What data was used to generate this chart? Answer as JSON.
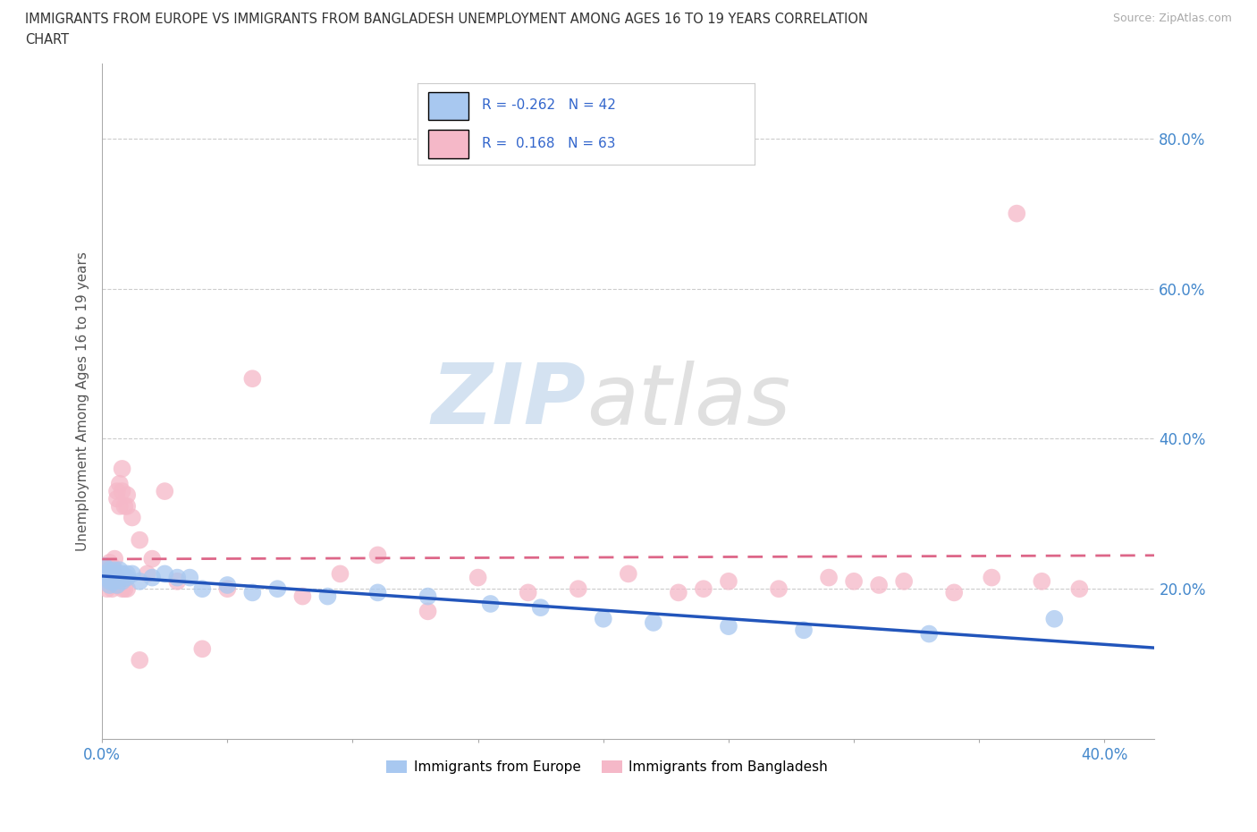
{
  "title_line1": "IMMIGRANTS FROM EUROPE VS IMMIGRANTS FROM BANGLADESH UNEMPLOYMENT AMONG AGES 16 TO 19 YEARS CORRELATION",
  "title_line2": "CHART",
  "source": "Source: ZipAtlas.com",
  "ylabel": "Unemployment Among Ages 16 to 19 years",
  "xlim": [
    0.0,
    0.42
  ],
  "ylim": [
    0.0,
    0.9
  ],
  "yticks": [
    0.2,
    0.4,
    0.6,
    0.8
  ],
  "ytick_labels": [
    "20.0%",
    "40.0%",
    "60.0%",
    "80.0%"
  ],
  "xtick_positions": [
    0.0,
    0.05,
    0.1,
    0.15,
    0.2,
    0.25,
    0.3,
    0.35,
    0.4
  ],
  "watermark_zip": "ZIP",
  "watermark_atlas": "atlas",
  "europe_R": -0.262,
  "europe_N": 42,
  "bangladesh_R": 0.168,
  "bangladesh_N": 63,
  "europe_color": "#a8c8f0",
  "bangladesh_color": "#f5b8c8",
  "europe_line_color": "#2255bb",
  "bangladesh_line_color": "#dd6688",
  "legend_europe_label": "Immigrants from Europe",
  "legend_bangladesh_label": "Immigrants from Bangladesh",
  "europe_scatter_x": [
    0.001,
    0.002,
    0.002,
    0.003,
    0.003,
    0.003,
    0.004,
    0.004,
    0.004,
    0.005,
    0.005,
    0.005,
    0.006,
    0.006,
    0.007,
    0.007,
    0.008,
    0.008,
    0.009,
    0.01,
    0.01,
    0.012,
    0.015,
    0.02,
    0.025,
    0.03,
    0.035,
    0.04,
    0.05,
    0.06,
    0.07,
    0.09,
    0.11,
    0.13,
    0.155,
    0.175,
    0.2,
    0.22,
    0.25,
    0.28,
    0.33,
    0.38
  ],
  "europe_scatter_y": [
    0.23,
    0.22,
    0.215,
    0.225,
    0.21,
    0.205,
    0.22,
    0.215,
    0.21,
    0.225,
    0.215,
    0.21,
    0.22,
    0.205,
    0.215,
    0.225,
    0.22,
    0.21,
    0.215,
    0.22,
    0.215,
    0.22,
    0.21,
    0.215,
    0.22,
    0.215,
    0.215,
    0.2,
    0.205,
    0.195,
    0.2,
    0.19,
    0.195,
    0.19,
    0.18,
    0.175,
    0.16,
    0.155,
    0.15,
    0.145,
    0.14,
    0.16
  ],
  "bangladesh_scatter_x": [
    0.001,
    0.001,
    0.002,
    0.002,
    0.002,
    0.003,
    0.003,
    0.003,
    0.003,
    0.004,
    0.004,
    0.004,
    0.004,
    0.005,
    0.005,
    0.005,
    0.005,
    0.006,
    0.006,
    0.006,
    0.006,
    0.007,
    0.007,
    0.007,
    0.008,
    0.008,
    0.008,
    0.009,
    0.009,
    0.01,
    0.01,
    0.01,
    0.012,
    0.015,
    0.015,
    0.018,
    0.02,
    0.025,
    0.03,
    0.04,
    0.05,
    0.06,
    0.08,
    0.095,
    0.11,
    0.13,
    0.15,
    0.17,
    0.19,
    0.21,
    0.23,
    0.24,
    0.25,
    0.27,
    0.29,
    0.3,
    0.31,
    0.32,
    0.34,
    0.355,
    0.365,
    0.375,
    0.39
  ],
  "bangladesh_scatter_y": [
    0.22,
    0.21,
    0.23,
    0.215,
    0.2,
    0.225,
    0.235,
    0.22,
    0.21,
    0.215,
    0.23,
    0.22,
    0.2,
    0.24,
    0.22,
    0.21,
    0.205,
    0.33,
    0.32,
    0.215,
    0.21,
    0.34,
    0.31,
    0.21,
    0.36,
    0.33,
    0.2,
    0.31,
    0.2,
    0.325,
    0.31,
    0.2,
    0.295,
    0.265,
    0.105,
    0.22,
    0.24,
    0.33,
    0.21,
    0.12,
    0.2,
    0.48,
    0.19,
    0.22,
    0.245,
    0.17,
    0.215,
    0.195,
    0.2,
    0.22,
    0.195,
    0.2,
    0.21,
    0.2,
    0.215,
    0.21,
    0.205,
    0.21,
    0.195,
    0.215,
    0.7,
    0.21,
    0.2
  ]
}
